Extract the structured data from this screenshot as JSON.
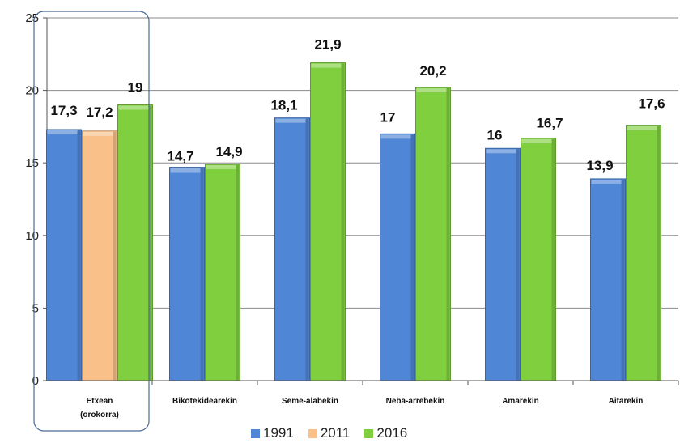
{
  "chart_data": {
    "type": "bar",
    "title": "",
    "xlabel": "",
    "ylabel": "",
    "ylim": [
      0,
      25
    ],
    "yticks": [
      0,
      5,
      10,
      15,
      20,
      25
    ],
    "grid": true,
    "legend_position": "bottom",
    "categories": [
      "Etxean (orokorra)",
      "Bikotekidearekin",
      "Seme-alabekin",
      "Neba-arrebekin",
      "Amarekin",
      "Aitarekin"
    ],
    "category_label_lines": [
      [
        "Etxean",
        "(orokorra)"
      ],
      [
        "Bikotekidearekin"
      ],
      [
        "Seme-alabekin"
      ],
      [
        "Neba-arrebekin"
      ],
      [
        "Amarekin"
      ],
      [
        "Aitarekin"
      ]
    ],
    "series": [
      {
        "name": "1991",
        "color": "#4f86d6",
        "values": [
          17.3,
          14.7,
          18.1,
          17,
          16,
          13.9
        ],
        "labels": [
          "17,3",
          "14,7",
          "18,1",
          "17",
          "16",
          "13,9"
        ]
      },
      {
        "name": "2011",
        "color": "#f9c08a",
        "values": [
          17.2,
          null,
          null,
          null,
          null,
          null
        ],
        "labels": [
          "17,2",
          "",
          "",
          "",
          "",
          ""
        ]
      },
      {
        "name": "2016",
        "color": "#7fcf3f",
        "values": [
          19,
          14.9,
          21.9,
          20.2,
          16.7,
          17.6
        ],
        "labels": [
          "19",
          "14,9",
          "21,9",
          "20,2",
          "16,7",
          "17,6"
        ]
      }
    ],
    "highlight_category": "Etxean (orokorra)"
  }
}
